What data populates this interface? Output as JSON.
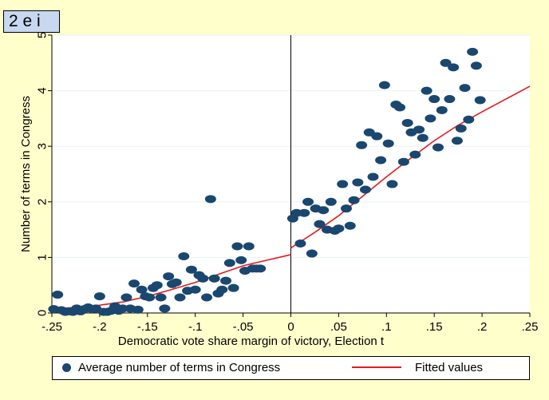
{
  "panel_tag": "2 e i",
  "chart_data": {
    "type": "scatter",
    "title": "",
    "xlabel": "Democratic vote share margin of victory, Election t",
    "ylabel": "Number of terms in Congress",
    "xlim": [
      -0.25,
      0.25
    ],
    "ylim": [
      0,
      5
    ],
    "x_ticks": [
      -0.25,
      -0.2,
      -0.15,
      -0.1,
      -0.05,
      0,
      0.05,
      0.1,
      0.15,
      0.2,
      0.25
    ],
    "x_tick_labels": [
      "-.25",
      "-.2",
      "-.15",
      "-.1",
      "-.05",
      "0",
      ".05",
      ".1",
      ".15",
      ".2",
      ".25"
    ],
    "y_ticks": [
      0,
      1,
      2,
      3,
      4,
      5
    ],
    "y_tick_labels": [
      "0",
      "1",
      "2",
      "3",
      "4",
      "5"
    ],
    "cutoff": 0,
    "grid": "horizontal",
    "legend_position": "bottom",
    "colors": {
      "markers": "#1a476f",
      "fit": "#e31a1c",
      "background": "#ffffcc",
      "plot": "#ffffff",
      "panel_tag": "#c8d8f0"
    },
    "series": [
      {
        "name": "Average number of terms in Congress",
        "type": "scatter",
        "points": [
          [
            -0.248,
            0.07
          ],
          [
            -0.244,
            0.33
          ],
          [
            -0.24,
            0.05
          ],
          [
            -0.236,
            0.02
          ],
          [
            -0.232,
            0.03
          ],
          [
            -0.228,
            0.02
          ],
          [
            -0.224,
            0.08
          ],
          [
            -0.22,
            0.03
          ],
          [
            -0.216,
            0.07
          ],
          [
            -0.212,
            0.1
          ],
          [
            -0.208,
            0.07
          ],
          [
            -0.204,
            0.08
          ],
          [
            -0.2,
            0.3
          ],
          [
            -0.196,
            0.02
          ],
          [
            -0.192,
            0.02
          ],
          [
            -0.188,
            0.04
          ],
          [
            -0.184,
            0.12
          ],
          [
            -0.18,
            0.04
          ],
          [
            -0.176,
            0.08
          ],
          [
            -0.172,
            0.28
          ],
          [
            -0.168,
            0.08
          ],
          [
            -0.164,
            0.53
          ],
          [
            -0.16,
            0.06
          ],
          [
            -0.156,
            0.42
          ],
          [
            -0.152,
            0.3
          ],
          [
            -0.148,
            0.28
          ],
          [
            -0.144,
            0.45
          ],
          [
            -0.14,
            0.5
          ],
          [
            -0.136,
            0.28
          ],
          [
            -0.132,
            0.08
          ],
          [
            -0.128,
            0.66
          ],
          [
            -0.124,
            0.52
          ],
          [
            -0.12,
            0.55
          ],
          [
            -0.116,
            0.28
          ],
          [
            -0.112,
            1.02
          ],
          [
            -0.108,
            0.4
          ],
          [
            -0.104,
            0.78
          ],
          [
            -0.1,
            0.42
          ],
          [
            -0.096,
            0.68
          ],
          [
            -0.092,
            0.62
          ],
          [
            -0.088,
            0.28
          ],
          [
            -0.084,
            2.05
          ],
          [
            -0.08,
            0.62
          ],
          [
            -0.076,
            0.35
          ],
          [
            -0.072,
            0.42
          ],
          [
            -0.068,
            0.58
          ],
          [
            -0.064,
            0.9
          ],
          [
            -0.06,
            0.45
          ],
          [
            -0.056,
            1.2
          ],
          [
            -0.052,
            0.95
          ],
          [
            -0.048,
            0.76
          ],
          [
            -0.044,
            1.2
          ],
          [
            -0.04,
            0.8
          ],
          [
            -0.036,
            0.8
          ],
          [
            -0.032,
            0.8
          ],
          [
            0.002,
            1.7
          ],
          [
            0.006,
            1.8
          ],
          [
            0.01,
            1.25
          ],
          [
            0.014,
            1.8
          ],
          [
            0.018,
            2.0
          ],
          [
            0.022,
            1.07
          ],
          [
            0.026,
            1.88
          ],
          [
            0.03,
            1.6
          ],
          [
            0.034,
            1.85
          ],
          [
            0.038,
            1.5
          ],
          [
            0.042,
            2.0
          ],
          [
            0.046,
            1.48
          ],
          [
            0.05,
            1.52
          ],
          [
            0.054,
            2.32
          ],
          [
            0.058,
            1.88
          ],
          [
            0.062,
            1.57
          ],
          [
            0.066,
            2.03
          ],
          [
            0.07,
            2.35
          ],
          [
            0.074,
            3.02
          ],
          [
            0.078,
            2.22
          ],
          [
            0.082,
            3.25
          ],
          [
            0.086,
            2.45
          ],
          [
            0.09,
            3.18
          ],
          [
            0.094,
            2.75
          ],
          [
            0.098,
            4.1
          ],
          [
            0.102,
            3.05
          ],
          [
            0.106,
            2.32
          ],
          [
            0.11,
            3.75
          ],
          [
            0.114,
            3.7
          ],
          [
            0.118,
            2.72
          ],
          [
            0.122,
            3.42
          ],
          [
            0.126,
            3.25
          ],
          [
            0.13,
            2.85
          ],
          [
            0.134,
            3.3
          ],
          [
            0.138,
            3.15
          ],
          [
            0.142,
            4.0
          ],
          [
            0.146,
            3.5
          ],
          [
            0.15,
            3.85
          ],
          [
            0.154,
            2.98
          ],
          [
            0.158,
            3.65
          ],
          [
            0.162,
            4.5
          ],
          [
            0.166,
            3.85
          ],
          [
            0.17,
            4.42
          ],
          [
            0.174,
            3.1
          ],
          [
            0.178,
            3.32
          ],
          [
            0.182,
            4.05
          ],
          [
            0.186,
            3.48
          ],
          [
            0.19,
            4.7
          ],
          [
            0.194,
            4.45
          ],
          [
            0.198,
            3.83
          ]
        ]
      },
      {
        "name": "Fitted values",
        "type": "line",
        "segments": [
          [
            [
              -0.25,
              0.07
            ],
            [
              -0.225,
              0.1
            ],
            [
              -0.2,
              0.14
            ],
            [
              -0.175,
              0.2
            ],
            [
              -0.15,
              0.3
            ],
            [
              -0.125,
              0.42
            ],
            [
              -0.1,
              0.55
            ],
            [
              -0.075,
              0.7
            ],
            [
              -0.05,
              0.85
            ],
            [
              -0.025,
              0.95
            ],
            [
              0,
              1.05
            ]
          ],
          [
            [
              0,
              1.17
            ],
            [
              0.025,
              1.45
            ],
            [
              0.05,
              1.75
            ],
            [
              0.075,
              2.1
            ],
            [
              0.1,
              2.45
            ],
            [
              0.125,
              2.78
            ],
            [
              0.15,
              3.1
            ],
            [
              0.175,
              3.38
            ],
            [
              0.2,
              3.62
            ],
            [
              0.225,
              3.85
            ],
            [
              0.25,
              4.08
            ]
          ]
        ]
      }
    ]
  }
}
